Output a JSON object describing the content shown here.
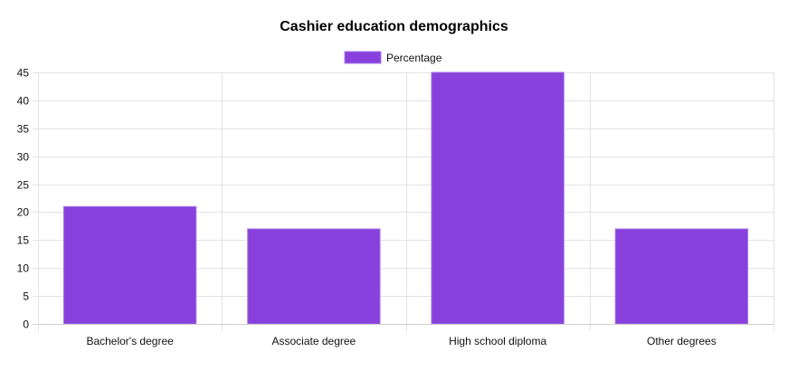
{
  "chart_data": {
    "type": "bar",
    "title": "Cashier education demographics",
    "categories": [
      "Bachelor's degree",
      "Associate degree",
      "High school diploma",
      "Other degrees"
    ],
    "series": [
      {
        "name": "Percentage",
        "values": [
          21,
          17,
          45,
          17
        ]
      }
    ],
    "ylim": [
      0,
      45
    ],
    "yticks": [
      0,
      5,
      10,
      15,
      20,
      25,
      30,
      35,
      40,
      45
    ],
    "legend_position": "top-center",
    "grid": true,
    "colors": {
      "bar_fill": "#8841dc",
      "bar_border": "#a478e8"
    }
  }
}
